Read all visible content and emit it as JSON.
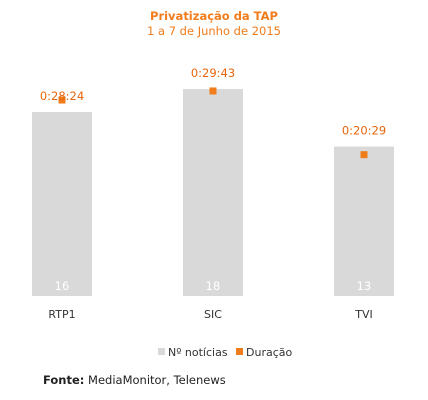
{
  "chart_data": {
    "type": "bar",
    "title": "Privatização da TAP",
    "subtitle": "1 a 7 de Junho de 2015",
    "categories": [
      "RTP1",
      "SIC",
      "TVI"
    ],
    "series": [
      {
        "name": "Nº notícias",
        "values": [
          16,
          18,
          13
        ],
        "color": "#d9d9d9",
        "labels": [
          "16",
          "18",
          "13"
        ]
      },
      {
        "name": "Duração",
        "values": [
          1704,
          1783,
          1229
        ],
        "color": "#f07c1c",
        "labels": [
          "0:28:24",
          "0:29:43",
          "0:20:29"
        ]
      }
    ],
    "ylim_count": [
      0,
      20
    ],
    "ylim_duration": [
      0,
      2000
    ],
    "legend_position": "bottom-center",
    "grid": false
  },
  "source": {
    "label": "Fonte:",
    "text": " MediaMonitor, Telenews"
  }
}
